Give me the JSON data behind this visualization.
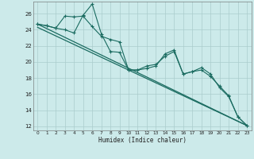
{
  "xlabel": "Humidex (Indice chaleur)",
  "bg_color": "#cceaea",
  "grid_color": "#aacccc",
  "line_color": "#1a6b60",
  "xlim": [
    -0.5,
    23.5
  ],
  "ylim": [
    11.5,
    27.5
  ],
  "yticks": [
    12,
    14,
    16,
    18,
    20,
    22,
    24,
    26
  ],
  "xticks": [
    0,
    1,
    2,
    3,
    4,
    5,
    6,
    7,
    8,
    9,
    10,
    11,
    12,
    13,
    14,
    15,
    16,
    17,
    18,
    19,
    20,
    21,
    22,
    23
  ],
  "series1_x": [
    0,
    1,
    2,
    3,
    4,
    5,
    5,
    6,
    7,
    8,
    9,
    10,
    11,
    12,
    13,
    14,
    15,
    16,
    17,
    18,
    19,
    20,
    21,
    22,
    23
  ],
  "series1_y": [
    24.7,
    24.5,
    24.2,
    25.7,
    25.6,
    25.7,
    25.7,
    24.4,
    23.2,
    22.8,
    22.5,
    19.0,
    19.0,
    19.5,
    19.7,
    20.7,
    21.3,
    18.5,
    18.8,
    19.0,
    18.2,
    17.0,
    15.8,
    13.2,
    12.1
  ],
  "series2_x": [
    0,
    1,
    2,
    3,
    4,
    5,
    6,
    7,
    8,
    9,
    10,
    11,
    12,
    13,
    14,
    15,
    16,
    17,
    18,
    19,
    20,
    21,
    22,
    23
  ],
  "series2_y": [
    24.7,
    24.5,
    24.2,
    24.0,
    23.6,
    25.8,
    27.2,
    23.5,
    21.3,
    21.2,
    19.0,
    19.0,
    19.2,
    19.5,
    21.0,
    21.5,
    18.5,
    18.8,
    19.3,
    18.5,
    16.8,
    15.7,
    13.2,
    12.1
  ],
  "series3_x": [
    0,
    23
  ],
  "series3_y": [
    24.7,
    12.1
  ],
  "series4_x": [
    0,
    23
  ],
  "series4_y": [
    24.3,
    12.1
  ]
}
